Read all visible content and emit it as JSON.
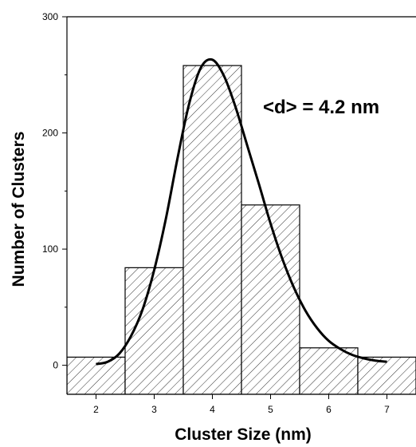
{
  "chart_data": {
    "type": "bar",
    "xlabel": "Cluster Size (nm)",
    "ylabel": "Number of Clusters",
    "annotation": "<d> = 4.2 nm",
    "xlim": [
      1.5,
      7.5
    ],
    "ylim": [
      -25,
      300
    ],
    "xticks": [
      2,
      3,
      4,
      5,
      6,
      7
    ],
    "yticks": [
      0,
      100,
      200,
      300
    ],
    "bins": [
      {
        "x0": 1.5,
        "x1": 2.5,
        "value": 7
      },
      {
        "x0": 2.5,
        "x1": 3.5,
        "value": 84
      },
      {
        "x0": 3.5,
        "x1": 4.5,
        "value": 258
      },
      {
        "x0": 4.5,
        "x1": 5.5,
        "value": 138
      },
      {
        "x0": 5.5,
        "x1": 6.5,
        "value": 15
      },
      {
        "x0": 6.5,
        "x1": 7.5,
        "value": 7
      }
    ],
    "fit_curve": {
      "x": [
        2.0,
        2.2,
        2.4,
        2.6,
        2.8,
        3.0,
        3.2,
        3.4,
        3.6,
        3.8,
        4.0,
        4.2,
        4.4,
        4.6,
        4.8,
        5.0,
        5.2,
        5.4,
        5.6,
        5.8,
        6.0,
        6.2,
        6.4,
        6.6,
        6.8,
        7.0
      ],
      "y": [
        1,
        3,
        10,
        25,
        48,
        82,
        126,
        178,
        225,
        256,
        263,
        249,
        222,
        189,
        156,
        122,
        92,
        67,
        47,
        32,
        21,
        14,
        9,
        6,
        4,
        3
      ]
    },
    "fill_pattern": "diagonal-hatch",
    "grid": false,
    "legend": "none"
  }
}
